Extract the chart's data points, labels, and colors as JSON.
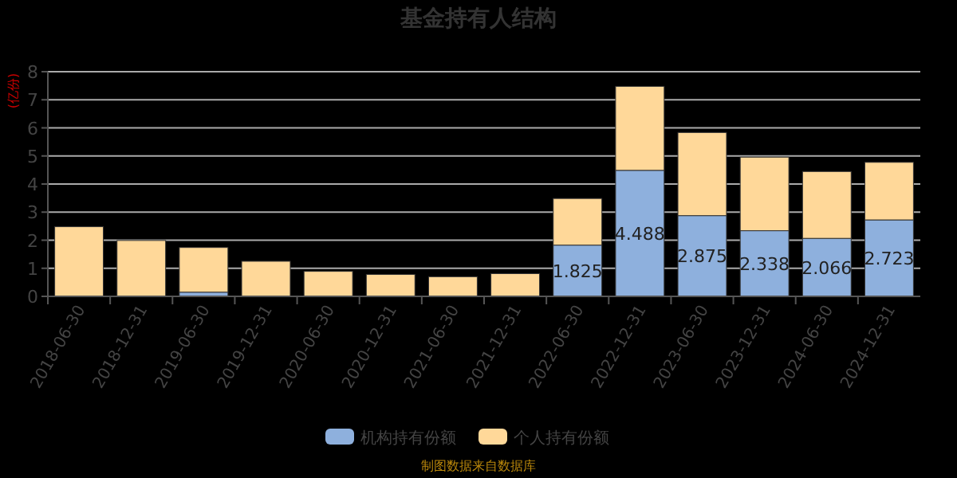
{
  "chart_data": {
    "type": "bar",
    "title": "基金持有人结构",
    "ylabel": "(亿份)",
    "stacked": true,
    "categories": [
      "2018-06-30",
      "2018-12-31",
      "2019-06-30",
      "2019-12-31",
      "2020-06-30",
      "2020-12-31",
      "2021-06-30",
      "2021-12-31",
      "2022-06-30",
      "2022-12-31",
      "2023-06-30",
      "2023-12-31",
      "2024-06-30",
      "2024-12-31"
    ],
    "series": [
      {
        "name": "机构持有份额",
        "color": "#8eb0dd",
        "values": [
          0,
          0,
          0.15,
          0,
          0,
          0,
          0,
          0,
          1.825,
          4.488,
          2.875,
          2.338,
          2.066,
          2.723
        ],
        "value_labels": [
          null,
          null,
          null,
          null,
          null,
          null,
          null,
          null,
          "1.825",
          "4.488",
          "2.875",
          "2.338",
          "2.066",
          "2.723"
        ]
      },
      {
        "name": "个人持有份额",
        "color": "#ffd899",
        "values": [
          2.48,
          1.99,
          1.59,
          1.25,
          0.89,
          0.78,
          0.7,
          0.81,
          1.66,
          2.99,
          2.96,
          2.62,
          2.38,
          2.05
        ]
      }
    ],
    "ylim": [
      0,
      8
    ],
    "yticks": [
      0,
      1,
      2,
      3,
      4,
      5,
      6,
      7,
      8
    ],
    "grid": "y",
    "legend": "bottom",
    "annotations": [
      "制图数据来自数据库"
    ]
  }
}
